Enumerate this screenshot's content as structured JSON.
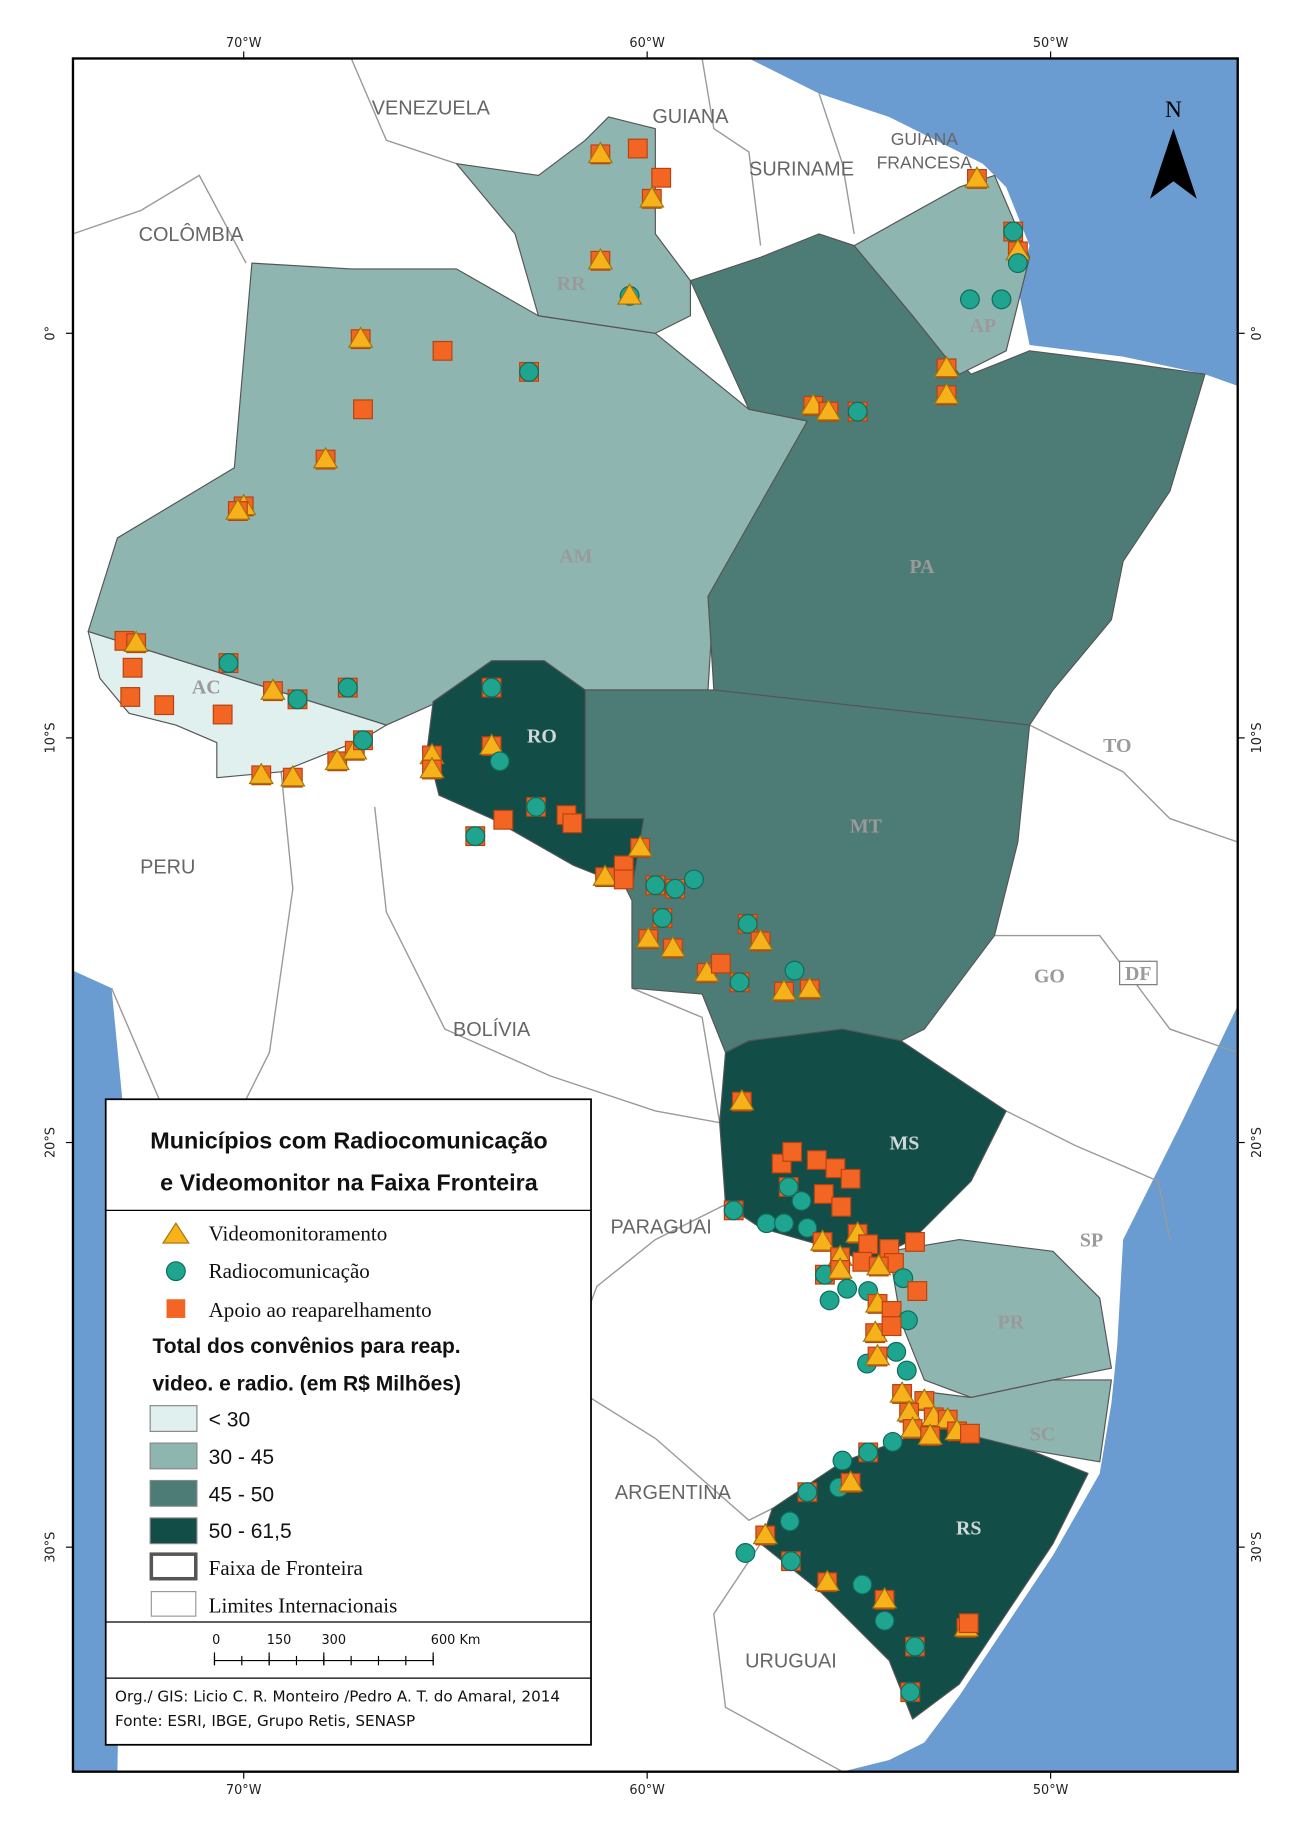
{
  "graticule": {
    "longitudes": [
      "70°W",
      "60°W",
      "50°W"
    ],
    "latitudes": [
      "0°",
      "10°S",
      "20°S",
      "30°S"
    ]
  },
  "north_arrow": "N",
  "countries": [
    "VENEZUELA",
    "GUIANA",
    "SURINAME",
    [
      "GUIANA",
      "FRANCESA"
    ],
    "COLÔMBIA",
    "PERU",
    "BOLÍVIA",
    "PARAGUAI",
    "ARGENTINA",
    "URUGUAI"
  ],
  "states": [
    "RR",
    "AP",
    "AM",
    "PA",
    "AC",
    "RO",
    "MT",
    "TO",
    "GO",
    "DF",
    "MS",
    "SP",
    "PR",
    "SC",
    "RS"
  ],
  "legend": {
    "title": [
      "Municípios com Radiocomunicação",
      "e Videomonitor na Faixa Fronteira"
    ],
    "symbols": [
      "Videomonitoramento",
      "Radiocomunicação",
      "Apoio ao reaparelhamento"
    ],
    "value_title": [
      "Total dos convênios para reap.",
      "video. e radio. (em R$ Milhões)"
    ],
    "classes": [
      "< 30",
      "30 - 45",
      "45 - 50",
      "50 - 61,5"
    ],
    "lines": [
      "Faixa de Fronteira",
      "Limites Internacionais"
    ]
  },
  "scale_bar": {
    "ticks": [
      0,
      150,
      300,
      {
        "value": 600,
        "label": "600 Km"
      }
    ]
  },
  "credits": [
    "Org./ GIS: Licio C. R. Monteiro /Pedro A. T. do Amaral, 2014",
    "Fonte: ESRI, IBGE, Grupo Retis, SENASP"
  ]
}
